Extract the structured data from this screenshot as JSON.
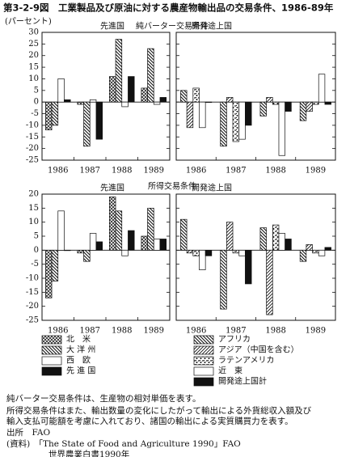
{
  "title": "第3-2-9図　工業製品及び原油に対する農産物輸出品の交易条件、1986-89年",
  "unit": "(パーセント)",
  "sections": [
    "純バーター交易条件",
    "所得交易条件"
  ],
  "notes": [
    "純バーター交易条件は、生産物の相対単価を表す。",
    "所得交易条件はまた、輸出数量の変化にしたがって輸出による外貨総収入額及び",
    "輸入支払可能額を考慮に入れており、諸国の輸出による実質購買力を表す。",
    "出所　FAO",
    "(資料)　「The State of Food and Agriculture 1990」FAO",
    "世界農業白書1990年"
  ],
  "chart_data": [
    {
      "type": "bar",
      "title": "先進国",
      "categories": [
        "1986",
        "1987",
        "1988",
        "1989"
      ],
      "ylim": [
        -25,
        30
      ],
      "yticks": [
        30,
        25,
        20,
        15,
        10,
        5,
        0,
        -5,
        -10,
        -15,
        -20,
        -25
      ],
      "series": [
        {
          "name": "北　米",
          "pattern": "crosshatch",
          "values": [
            -12,
            -1,
            11,
            6
          ]
        },
        {
          "name": "大 洋 州",
          "pattern": "backslash",
          "values": [
            -10,
            -19,
            27,
            23
          ]
        },
        {
          "name": "西　欧",
          "pattern": "white",
          "values": [
            10,
            1,
            -2,
            -1
          ]
        },
        {
          "name": "先 進 国",
          "pattern": "black",
          "values": [
            1,
            -16,
            11,
            2
          ]
        }
      ]
    },
    {
      "type": "bar",
      "title": "開発途上国",
      "categories": [
        "1986",
        "1987",
        "1988",
        "1989"
      ],
      "ylim": [
        -25,
        30
      ],
      "yticks": [
        30,
        25,
        20,
        15,
        10,
        5,
        0,
        -5,
        -10,
        -15,
        -20,
        -25
      ],
      "series": [
        {
          "name": "アフリカ",
          "pattern": "backslash",
          "values": [
            5,
            -19,
            -6,
            -8
          ]
        },
        {
          "name": "アジア（中国を含む）",
          "pattern": "slash",
          "values": [
            -11,
            2,
            2,
            -4
          ]
        },
        {
          "name": "ラテンアメリカ",
          "pattern": "speckle",
          "values": [
            6,
            -17,
            -1,
            -1
          ]
        },
        {
          "name": "近　東",
          "pattern": "white",
          "values": [
            -11,
            -16,
            -23,
            12
          ]
        },
        {
          "name": "開発途上国計",
          "pattern": "black",
          "values": [
            0,
            -10,
            -4,
            -1
          ]
        }
      ]
    },
    {
      "type": "bar",
      "title": "先進国",
      "categories": [
        "1986",
        "1987",
        "1988",
        "1989"
      ],
      "ylim": [
        -25,
        20
      ],
      "yticks": [
        20,
        15,
        10,
        5,
        0,
        -5,
        -10,
        -15,
        -20,
        -25
      ],
      "series": [
        {
          "name": "北　米",
          "pattern": "crosshatch",
          "values": [
            -17,
            -1,
            19,
            5
          ]
        },
        {
          "name": "大 洋 州",
          "pattern": "backslash",
          "values": [
            -11,
            -4,
            14,
            15
          ]
        },
        {
          "name": "西　欧",
          "pattern": "white",
          "values": [
            14,
            6,
            -2,
            4
          ]
        },
        {
          "name": "先 進 国",
          "pattern": "black",
          "values": [
            0,
            3,
            7,
            4
          ]
        }
      ]
    },
    {
      "type": "bar",
      "title": "開発途上国",
      "categories": [
        "1986",
        "1987",
        "1988",
        "1989"
      ],
      "ylim": [
        -25,
        20
      ],
      "yticks": [
        20,
        15,
        10,
        5,
        0,
        -5,
        -10,
        -15,
        -20,
        -25
      ],
      "series": [
        {
          "name": "アフリカ",
          "pattern": "backslash",
          "values": [
            11,
            -21,
            8,
            -4
          ]
        },
        {
          "name": "アジア（中国を含む）",
          "pattern": "slash",
          "values": [
            -1,
            10,
            -23,
            2
          ]
        },
        {
          "name": "ラテンアメリカ",
          "pattern": "speckle",
          "values": [
            -2,
            -1,
            9,
            -1
          ]
        },
        {
          "name": "近　東",
          "pattern": "white",
          "values": [
            -7,
            -2,
            6,
            -2
          ]
        },
        {
          "name": "開発途上国計",
          "pattern": "black",
          "values": [
            -2,
            -12,
            4,
            1
          ]
        }
      ]
    }
  ]
}
